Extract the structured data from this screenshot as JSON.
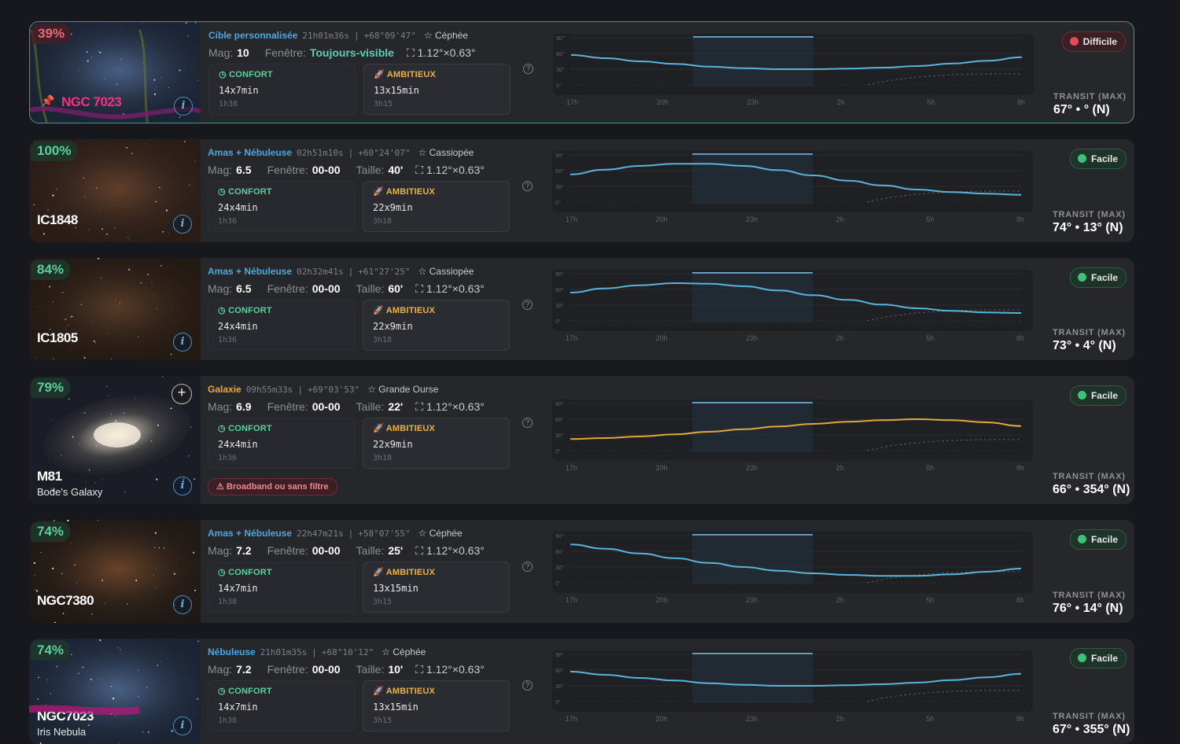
{
  "labels": {
    "confort": "CONFORT",
    "ambitieux": "AMBITIEUX",
    "transit": "TRANSIT (MAX)",
    "mag": "Mag:",
    "fenetre": "Fenêtre:",
    "taille": "Taille:",
    "help": "?",
    "info": "i"
  },
  "chart_axes": {
    "y_ticks": [
      "90°",
      "60°",
      "30°",
      "0°"
    ],
    "x_ticks": [
      "17h",
      "20h",
      "23h",
      "2h",
      "5h",
      "8h"
    ]
  },
  "colors": {
    "blue_curve": "#5ab4da",
    "orange_curve": "#e0a83a",
    "easy": "#3ec07a",
    "hard": "#e04a5a",
    "type_blue": "#4aa8e0",
    "type_orange": "#e8a83a"
  },
  "cards": [
    {
      "pct": "39%",
      "pct_color": "#e46a7a",
      "name": "NGC 7023",
      "pinned": true,
      "selected": true,
      "alias": "",
      "plus": false,
      "type": "Cible personnalisée",
      "ra": "21h01m36s",
      "dec": "+68°09'47\"",
      "constellation": "Céphée",
      "mag": "10",
      "fenetre": "Toujours-visible",
      "taille": "",
      "size": "1.12°×0.63°",
      "confort_val": "14x7min",
      "confort_sub": "1h38",
      "amb_val": "13x15min",
      "amb_sub": "3h15",
      "badge": "Difficile",
      "badge_kind": "hard",
      "transit": "67° • ° (N)",
      "warning": "",
      "curve_color": "blue",
      "curve": [
        57,
        51,
        45,
        40,
        35,
        32,
        30,
        30,
        31,
        33,
        36,
        41,
        46,
        53
      ]
    },
    {
      "pct": "100%",
      "pct_color": "#5ad19a",
      "name": "IC1848",
      "pinned": false,
      "selected": false,
      "alias": "",
      "plus": false,
      "type": "Amas + Nébuleuse",
      "ra": "02h51m10s",
      "dec": "+60°24'07\"",
      "constellation": "Cassiopée",
      "mag": "6.5",
      "fenetre": "00-00",
      "taille": "40'",
      "size": "1.12°×0.63°",
      "confort_val": "24x4min",
      "confort_sub": "1h36",
      "amb_val": "22x9min",
      "amb_sub": "3h18",
      "badge": "Facile",
      "badge_kind": "easy",
      "transit": "74° • 13° (N)",
      "warning": "",
      "curve_color": "blue",
      "curve": [
        53,
        62,
        69,
        73,
        73,
        69,
        61,
        51,
        41,
        32,
        24,
        19,
        16,
        14
      ]
    },
    {
      "pct": "84%",
      "pct_color": "#5ad19a",
      "name": "IC1805",
      "pinned": false,
      "selected": false,
      "alias": "",
      "plus": false,
      "type": "Amas + Nébuleuse",
      "ra": "02h32m41s",
      "dec": "+61°27'25\"",
      "constellation": "Cassiopée",
      "mag": "6.5",
      "fenetre": "00-00",
      "taille": "60'",
      "size": "1.12°×0.63°",
      "confort_val": "24x4min",
      "confort_sub": "1h36",
      "amb_val": "22x9min",
      "amb_sub": "3h18",
      "badge": "Facile",
      "badge_kind": "easy",
      "transit": "73° • 4° (N)",
      "warning": "",
      "curve_color": "blue",
      "curve": [
        54,
        62,
        68,
        72,
        71,
        66,
        58,
        49,
        40,
        31,
        24,
        19,
        16,
        15
      ]
    },
    {
      "pct": "79%",
      "pct_color": "#5ad19a",
      "name": "M81",
      "pinned": false,
      "selected": false,
      "alias": "Bode's Galaxy",
      "plus": true,
      "type": "Galaxie",
      "ra": "09h55m33s",
      "dec": "+69°03'53\"",
      "constellation": "Grande Ourse",
      "mag": "6.9",
      "fenetre": "00-00",
      "taille": "22'",
      "size": "1.12°×0.63°",
      "confort_val": "24x4min",
      "confort_sub": "1h36",
      "amb_val": "22x9min",
      "amb_sub": "3h18",
      "badge": "Facile",
      "badge_kind": "easy",
      "transit": "66° • 354° (N)",
      "warning": "Broadband ou sans filtre",
      "curve_color": "orange",
      "curve": [
        22,
        24,
        27,
        31,
        36,
        41,
        46,
        51,
        55,
        58,
        60,
        58,
        54,
        47
      ]
    },
    {
      "pct": "74%",
      "pct_color": "#5ad19a",
      "name": "NGC7380",
      "pinned": false,
      "selected": false,
      "alias": "",
      "plus": false,
      "type": "Amas + Nébuleuse",
      "ra": "22h47m21s",
      "dec": "+58°07'55\"",
      "constellation": "Céphée",
      "mag": "7.2",
      "fenetre": "00-00",
      "taille": "25'",
      "size": "1.12°×0.63°",
      "confort_val": "14x7min",
      "confort_sub": "1h38",
      "amb_val": "13x15min",
      "amb_sub": "3h15",
      "badge": "Facile",
      "badge_kind": "easy",
      "transit": "76° • 14° (N)",
      "warning": "",
      "curve_color": "blue",
      "curve": [
        73,
        65,
        56,
        47,
        38,
        30,
        23,
        18,
        15,
        13,
        13,
        16,
        21,
        27
      ]
    },
    {
      "pct": "74%",
      "pct_color": "#5ad19a",
      "name": "NGC7023",
      "pinned": false,
      "selected": false,
      "alias": "Iris Nebula",
      "plus": false,
      "type": "Nébuleuse",
      "ra": "21h01m35s",
      "dec": "+68°10'12\"",
      "constellation": "Céphée",
      "mag": "7.2",
      "fenetre": "00-00",
      "taille": "10'",
      "size": "1.12°×0.63°",
      "confort_val": "14x7min",
      "confort_sub": "1h38",
      "amb_val": "13x15min",
      "amb_sub": "3h15",
      "badge": "Facile",
      "badge_kind": "easy",
      "transit": "67° • 355° (N)",
      "warning": "",
      "curve_color": "blue",
      "curve": [
        57,
        51,
        45,
        40,
        35,
        32,
        30,
        30,
        31,
        33,
        36,
        41,
        46,
        53
      ]
    }
  ]
}
